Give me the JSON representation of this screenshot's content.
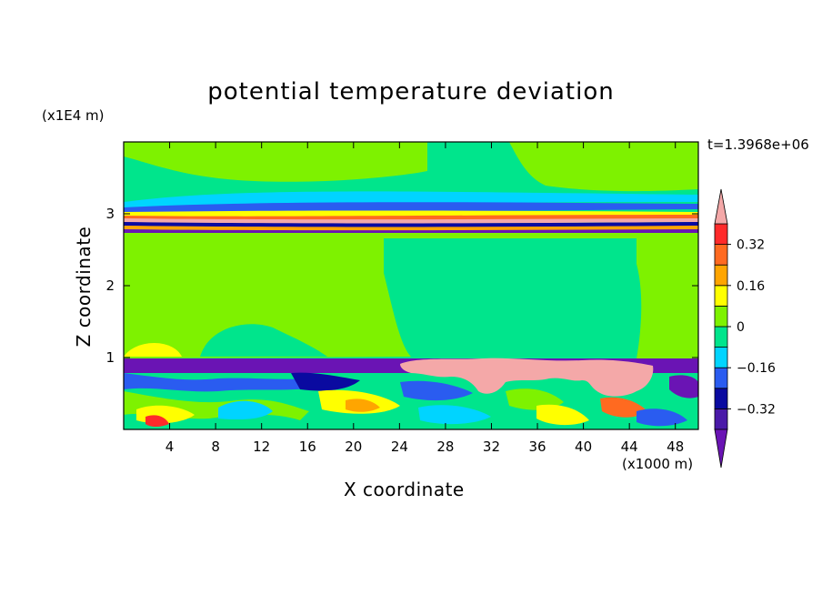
{
  "chart_data": {
    "type": "heatmap",
    "title": "potential temperature deviation",
    "xlabel": "X coordinate",
    "ylabel": "Z coordinate",
    "x_unit": "(x1000 m)",
    "y_unit": "(x1E4 m)",
    "time_label": "t=1.3968e+06",
    "xlim": [
      0,
      50
    ],
    "ylim": [
      0,
      4
    ],
    "x_ticks": [
      4,
      8,
      12,
      16,
      20,
      24,
      28,
      32,
      36,
      40,
      44,
      48
    ],
    "y_ticks": [
      1,
      2,
      3
    ],
    "colorbar": {
      "bin_edges": [
        -0.4,
        -0.32,
        -0.24,
        -0.16,
        -0.08,
        0,
        0.08,
        0.16,
        0.24,
        0.32,
        0.4
      ],
      "colors": [
        "#4a19a8",
        "#0a0aa0",
        "#2a5cf0",
        "#00d4ff",
        "#00e58c",
        "#7ef200",
        "#ffff00",
        "#ffa500",
        "#ff6a20",
        "#ff2a2a"
      ],
      "under_color": "#6a14b4",
      "over_color": "#f4a8a8",
      "tick_labels": [
        "0.32",
        "0.16",
        "0",
        "−0.16",
        "−0.32"
      ],
      "tick_values": [
        0.32,
        0.16,
        0,
        -0.16,
        -0.32
      ]
    }
  }
}
